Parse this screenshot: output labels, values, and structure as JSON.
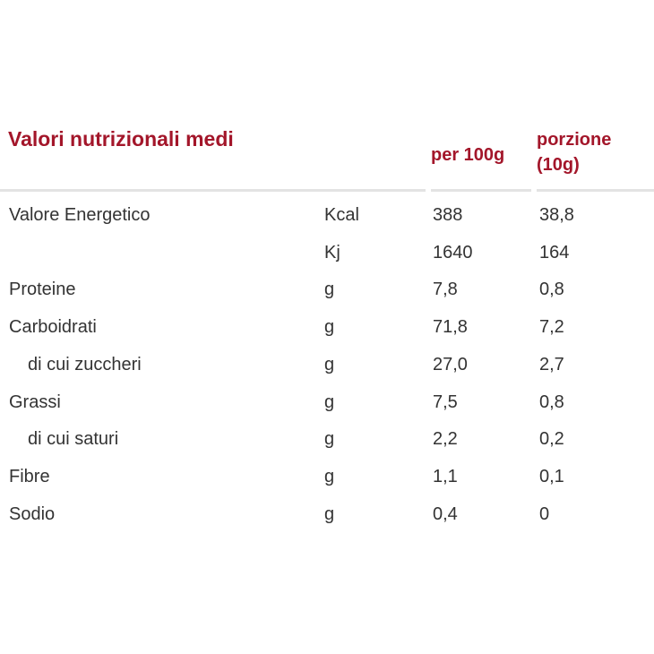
{
  "table": {
    "title": "Valori nutrizionali medi",
    "col_per100": "per 100g",
    "col_portion_line1": "porzione",
    "col_portion_line2": "(10g)",
    "accent_color": "#a3162a",
    "rows": [
      {
        "label": "Valore Energetico",
        "unit": "Kcal",
        "per100": "388",
        "portion": "38,8",
        "indent": false
      },
      {
        "label": "",
        "unit": "Kj",
        "per100": "1640",
        "portion": "164",
        "indent": false
      },
      {
        "label": "Proteine",
        "unit": "g",
        "per100": "7,8",
        "portion": "0,8",
        "indent": false
      },
      {
        "label": "Carboidrati",
        "unit": "g",
        "per100": "71,8",
        "portion": "7,2",
        "indent": false
      },
      {
        "label": "di cui zuccheri",
        "unit": "g",
        "per100": "27,0",
        "portion": "2,7",
        "indent": true
      },
      {
        "label": "Grassi",
        "unit": "g",
        "per100": "7,5",
        "portion": "0,8",
        "indent": false
      },
      {
        "label": "di cui saturi",
        "unit": "g",
        "per100": "2,2",
        "portion": "0,2",
        "indent": true
      },
      {
        "label": "Fibre",
        "unit": "g",
        "per100": "1,1",
        "portion": "0,1",
        "indent": false
      },
      {
        "label": "Sodio",
        "unit": "g",
        "per100": "0,4",
        "portion": "0",
        "indent": false
      }
    ]
  }
}
